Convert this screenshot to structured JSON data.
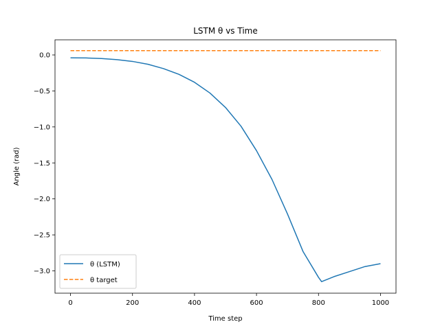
{
  "chart_data": {
    "type": "line",
    "title": "LSTM θ vs Time",
    "xlabel": "Time step",
    "ylabel": "Angle (rad)",
    "xlim": [
      -50,
      1050
    ],
    "ylim": [
      -3.31,
      0.21
    ],
    "xticks": [
      0,
      200,
      400,
      600,
      800,
      1000
    ],
    "xtick_labels": [
      "0",
      "200",
      "400",
      "600",
      "800",
      "1000"
    ],
    "yticks": [
      0.0,
      -0.5,
      -1.0,
      -1.5,
      -2.0,
      -2.5,
      -3.0
    ],
    "ytick_labels": [
      "0.0",
      "−0.5",
      "−1.0",
      "−1.5",
      "−2.0",
      "−2.5",
      "−3.0"
    ],
    "grid": false,
    "legend_position": "lower-left",
    "series": [
      {
        "name": "θ (LSTM)",
        "color": "#1f77b4",
        "style": "solid",
        "x": [
          0,
          50,
          100,
          150,
          200,
          250,
          300,
          350,
          400,
          450,
          500,
          550,
          600,
          650,
          700,
          750,
          800,
          810,
          850,
          900,
          950,
          1000
        ],
        "y": [
          -0.04,
          -0.042,
          -0.05,
          -0.065,
          -0.09,
          -0.13,
          -0.19,
          -0.27,
          -0.38,
          -0.53,
          -0.73,
          -0.99,
          -1.33,
          -1.73,
          -2.21,
          -2.73,
          -3.09,
          -3.15,
          -3.08,
          -3.01,
          -2.94,
          -2.9
        ]
      },
      {
        "name": "θ target",
        "color": "#ff7f0e",
        "style": "dashed",
        "x": [
          0,
          1000
        ],
        "y": [
          0.06,
          0.06
        ]
      }
    ]
  }
}
